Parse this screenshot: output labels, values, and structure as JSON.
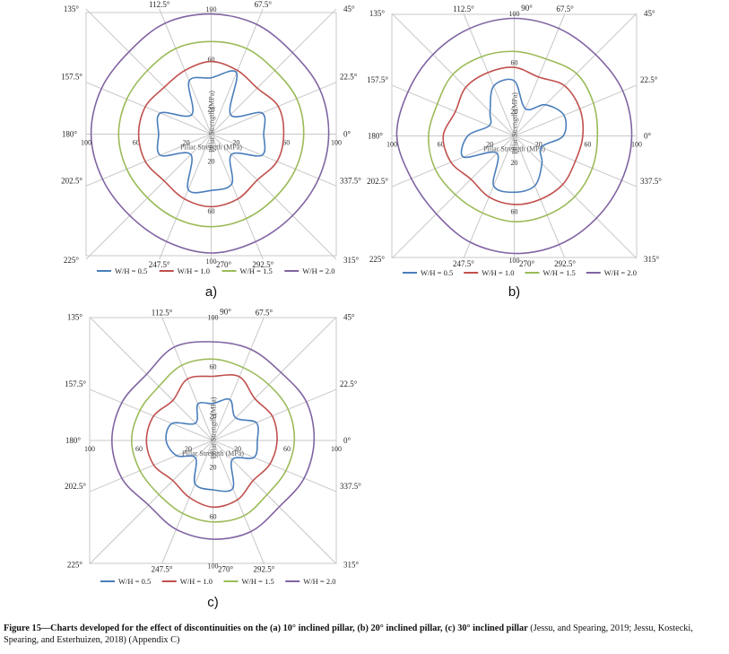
{
  "figure": {
    "caption_head": "Figure 15—Charts developed for the effect of discontinuities on the (a) 10° inclined pillar, (b) 20° inclined pillar, (c) 30° inclined pillar",
    "caption_tail": " (Jessu, and Spearing, 2019; Jessu, Kostecki, Spearing, and Esterhuizen, 2018) (Appendix C)"
  },
  "colors": {
    "W/H = 0.5": "#4a7ebb",
    "W/H = 1.0": "#c0504d",
    "W/H = 1.5": "#9bbb59",
    "W/H = 2.0": "#8064a2",
    "grid": "#c8c8c8"
  },
  "chart_data": [
    {
      "type": "radar",
      "panel_label": "a)",
      "angles": [
        "0°",
        "22.5°",
        "45°",
        "67.5°",
        "90°",
        "112.5°",
        "135°",
        "157.5°",
        "180°",
        "202.5°",
        "225°",
        "247.5°",
        "270°",
        "292.5°",
        "315°",
        "337.5°"
      ],
      "angle_values_deg": [
        0,
        22.5,
        45,
        67.5,
        90,
        112.5,
        135,
        157.5,
        180,
        202.5,
        225,
        247.5,
        270,
        292.5,
        315,
        337.5
      ],
      "angle_label_visible": [
        true,
        true,
        true,
        true,
        false,
        true,
        true,
        true,
        true,
        true,
        true,
        true,
        true,
        true,
        true,
        true
      ],
      "radial_ticks": [
        "20",
        "60",
        "100"
      ],
      "rlim": [
        0,
        100
      ],
      "axis_label": "Pillar Strength (MPa)",
      "legend": "bottom",
      "series": [
        {
          "name": "W/H = 0.5",
          "values": [
            42,
            44,
            22,
            53,
            45,
            46,
            22,
            44,
            42,
            44,
            23,
            48,
            45,
            43,
            23,
            44
          ]
        },
        {
          "name": "W/H = 1.0",
          "values": [
            58,
            58,
            52,
            55,
            58,
            55,
            53,
            57,
            58,
            57,
            53,
            56,
            58,
            56,
            52,
            57
          ]
        },
        {
          "name": "W/H = 1.5",
          "values": [
            74,
            74,
            72,
            74,
            74,
            74,
            72,
            73,
            74,
            73,
            72,
            73,
            74,
            73,
            72,
            73
          ]
        },
        {
          "name": "W/H = 2.0",
          "values": [
            94,
            94,
            92,
            95,
            96,
            96,
            93,
            95,
            96,
            94,
            92,
            93,
            95,
            93,
            92,
            93
          ]
        }
      ]
    },
    {
      "type": "radar",
      "panel_label": "b)",
      "angles": [
        "0°",
        "22.5°",
        "45°",
        "67.5°",
        "90°",
        "112.5°",
        "135°",
        "157.5°",
        "180°",
        "202.5°",
        "225°",
        "247.5°",
        "270°",
        "292.5°",
        "315°",
        "337.5°"
      ],
      "angle_values_deg": [
        0,
        22.5,
        45,
        67.5,
        90,
        112.5,
        135,
        157.5,
        180,
        202.5,
        225,
        247.5,
        270,
        292.5,
        315,
        337.5
      ],
      "angle_label_visible": [
        true,
        true,
        true,
        true,
        true,
        true,
        true,
        true,
        true,
        true,
        true,
        true,
        true,
        true,
        true,
        true
      ],
      "radial_ticks": [
        "20",
        "60",
        "100"
      ],
      "rlim": [
        0,
        100
      ],
      "axis_label": "Pillar Strength (MPa)",
      "legend": "bottom",
      "series": [
        {
          "name": "W/H = 0.5",
          "values": [
            40,
            44,
            36,
            24,
            45,
            44,
            28,
            22,
            38,
            45,
            20,
            44,
            46,
            44,
            32,
            24
          ]
        },
        {
          "name": "W/H = 1.0",
          "values": [
            56,
            58,
            58,
            52,
            56,
            56,
            56,
            52,
            58,
            56,
            50,
            54,
            56,
            56,
            56,
            54
          ]
        },
        {
          "name": "W/H = 1.5",
          "values": [
            68,
            70,
            72,
            68,
            69,
            70,
            71,
            68,
            70,
            70,
            68,
            68,
            70,
            70,
            70,
            69
          ]
        },
        {
          "name": "W/H = 2.0",
          "values": [
            96,
            96,
            94,
            95,
            96,
            95,
            94,
            94,
            96,
            91,
            90,
            94,
            96,
            96,
            95,
            95
          ]
        }
      ]
    },
    {
      "type": "radar",
      "panel_label": "c)",
      "angles": [
        "0°",
        "22.5°",
        "45°",
        "67.5°",
        "90°",
        "112.5°",
        "135°",
        "157.5°",
        "180°",
        "202.5°",
        "225°",
        "247.5°",
        "270°",
        "292.5°",
        "315°",
        "337.5°"
      ],
      "angle_values_deg": [
        0,
        22.5,
        45,
        67.5,
        90,
        112.5,
        135,
        157.5,
        180,
        202.5,
        225,
        247.5,
        270,
        292.5,
        315,
        337.5
      ],
      "angle_label_visible": [
        true,
        true,
        true,
        true,
        true,
        true,
        true,
        true,
        true,
        true,
        true,
        true,
        true,
        true,
        true,
        true
      ],
      "radial_ticks": [
        "20",
        "60",
        "100"
      ],
      "rlim": [
        0,
        100
      ],
      "axis_label": "Pillar Strength (MPa)",
      "legend": "bottom",
      "series": [
        {
          "name": "W/H = 0.5",
          "values": [
            36,
            38,
            26,
            36,
            30,
            32,
            20,
            36,
            38,
            32,
            20,
            38,
            40,
            42,
            22,
            36
          ]
        },
        {
          "name": "W/H = 1.0",
          "values": [
            52,
            52,
            48,
            56,
            52,
            54,
            46,
            52,
            54,
            52,
            46,
            50,
            54,
            52,
            46,
            50
          ]
        },
        {
          "name": "W/H = 1.5",
          "values": [
            66,
            66,
            64,
            64,
            66,
            66,
            62,
            64,
            66,
            64,
            62,
            64,
            66,
            66,
            62,
            64
          ]
        },
        {
          "name": "W/H = 2.0",
          "values": [
            82,
            82,
            78,
            80,
            80,
            82,
            76,
            80,
            82,
            80,
            74,
            78,
            80,
            80,
            76,
            80
          ]
        }
      ]
    }
  ]
}
